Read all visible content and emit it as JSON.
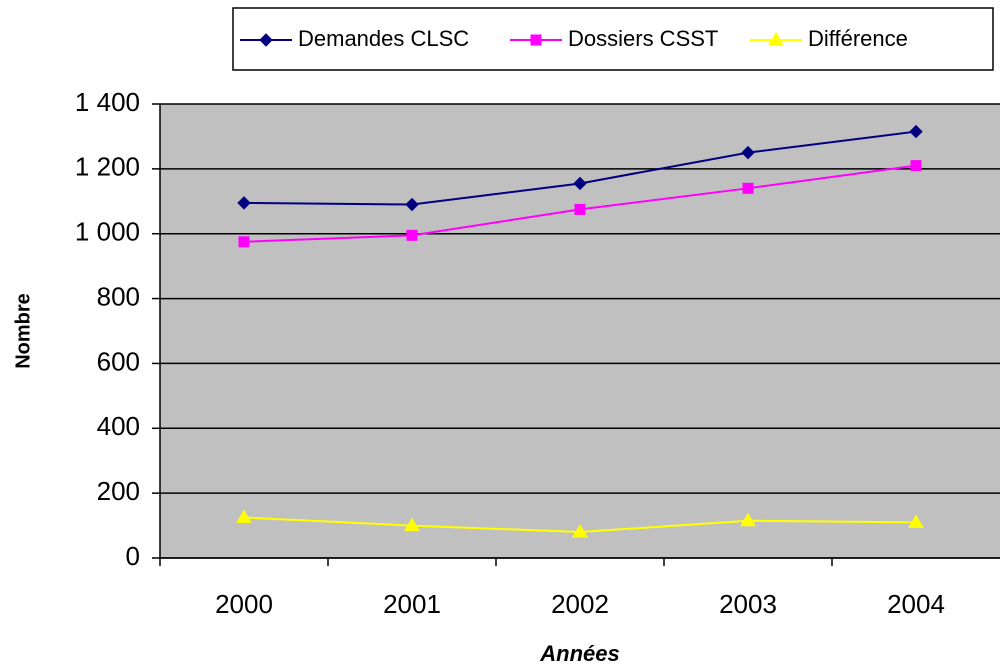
{
  "chart_data": {
    "type": "line",
    "x_label": "Années",
    "y_label": "Nombre",
    "categories": [
      "2000",
      "2001",
      "2002",
      "2003",
      "2004"
    ],
    "series": [
      {
        "name": "Demandes CLSC",
        "color": "#000080",
        "marker": "diamond",
        "values": [
          1095,
          1090,
          1155,
          1250,
          1315
        ]
      },
      {
        "name": "Dossiers CSST",
        "color": "#ff00ff",
        "marker": "square",
        "values": [
          975,
          995,
          1075,
          1140,
          1210
        ]
      },
      {
        "name": "Différence",
        "color": "#ffff00",
        "marker": "triangle",
        "values": [
          125,
          100,
          80,
          115,
          110
        ]
      }
    ],
    "ylim": [
      0,
      1400
    ],
    "yticks": [
      0,
      200,
      400,
      600,
      800,
      {
        "value": 1000,
        "label": "1 000"
      },
      {
        "value": 1200,
        "label": "1 200"
      },
      {
        "value": 1400,
        "label": "1 400"
      }
    ],
    "grid": true,
    "plot_background": "#c0c0c0",
    "legend": "top"
  }
}
